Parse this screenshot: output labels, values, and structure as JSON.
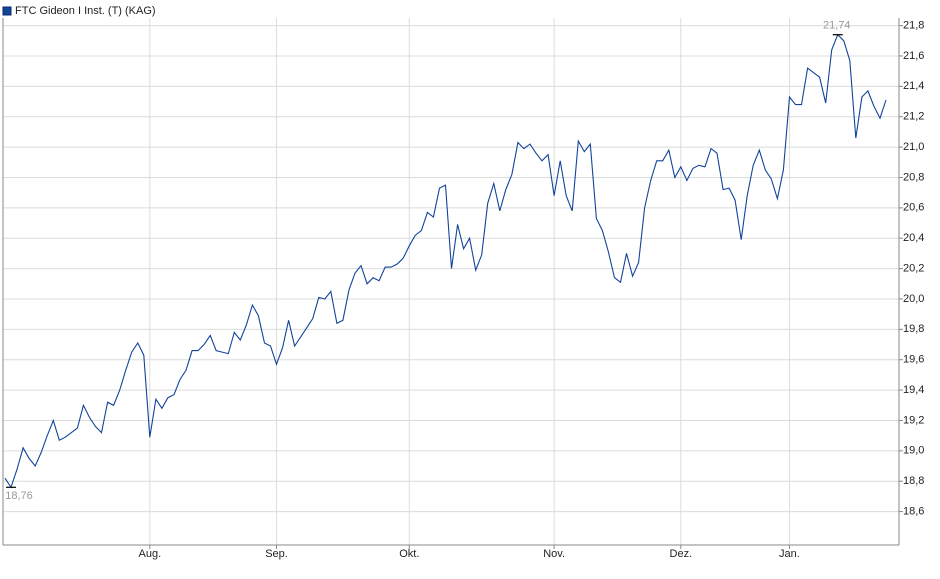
{
  "chart_data": {
    "type": "line",
    "categories": [
      null,
      null,
      null,
      null,
      null,
      null,
      null,
      null,
      null,
      null,
      null,
      null,
      null,
      null,
      null,
      null,
      null,
      null,
      null,
      null,
      null,
      null,
      null,
      null,
      "Aug.",
      null,
      null,
      null,
      null,
      null,
      null,
      null,
      null,
      null,
      null,
      null,
      null,
      null,
      null,
      null,
      null,
      null,
      null,
      null,
      null,
      "Sep.",
      null,
      null,
      null,
      null,
      null,
      null,
      null,
      null,
      null,
      null,
      null,
      null,
      null,
      null,
      null,
      null,
      null,
      null,
      null,
      null,
      null,
      "Okt.",
      null,
      null,
      null,
      null,
      null,
      null,
      null,
      null,
      null,
      null,
      null,
      null,
      null,
      null,
      null,
      null,
      null,
      null,
      null,
      null,
      null,
      null,
      null,
      "Nov.",
      null,
      null,
      null,
      null,
      null,
      null,
      null,
      null,
      null,
      null,
      null,
      null,
      null,
      null,
      null,
      null,
      null,
      null,
      null,
      null,
      "Dez.",
      null,
      null,
      null,
      null,
      null,
      null,
      null,
      null,
      null,
      null,
      null,
      null,
      null,
      null,
      null,
      null,
      null,
      "Jan.",
      null,
      null,
      null,
      null,
      null,
      null,
      null,
      null,
      null,
      null,
      null,
      null,
      null,
      null,
      null,
      null
    ],
    "series": [
      {
        "name": "FTC Gideon I Inst. (T) (KAG)",
        "color": "#12449a",
        "values": [
          18.82,
          18.76,
          18.88,
          19.02,
          18.95,
          18.9,
          18.99,
          19.1,
          19.2,
          19.07,
          19.09,
          19.12,
          19.15,
          19.3,
          19.22,
          19.16,
          19.12,
          19.32,
          19.3,
          19.4,
          19.53,
          19.65,
          19.71,
          19.63,
          19.09,
          19.34,
          19.28,
          19.35,
          19.37,
          19.47,
          19.53,
          19.66,
          19.66,
          19.7,
          19.76,
          19.66,
          19.65,
          19.64,
          19.78,
          19.73,
          19.83,
          19.96,
          19.89,
          19.71,
          19.69,
          19.57,
          19.68,
          19.86,
          19.69,
          19.75,
          19.81,
          19.87,
          20.01,
          20.0,
          20.05,
          19.84,
          19.86,
          20.06,
          20.17,
          20.22,
          20.1,
          20.14,
          20.12,
          20.21,
          20.21,
          20.23,
          20.27,
          20.35,
          20.42,
          20.45,
          20.57,
          20.54,
          20.73,
          20.75,
          20.2,
          20.49,
          20.33,
          20.4,
          20.19,
          20.29,
          20.63,
          20.76,
          20.58,
          20.72,
          20.82,
          21.03,
          20.99,
          21.02,
          20.96,
          20.91,
          20.95,
          20.68,
          20.91,
          20.68,
          20.58,
          21.04,
          20.97,
          21.02,
          20.53,
          20.45,
          20.31,
          20.14,
          20.11,
          20.3,
          20.15,
          20.24,
          20.6,
          20.78,
          20.91,
          20.91,
          20.98,
          20.8,
          20.87,
          20.78,
          20.86,
          20.88,
          20.87,
          20.99,
          20.96,
          20.72,
          20.73,
          20.65,
          20.39,
          20.68,
          20.88,
          20.98,
          20.85,
          20.79,
          20.66,
          20.85,
          21.33,
          21.28,
          21.28,
          21.52,
          21.49,
          21.46,
          21.29,
          21.64,
          21.74,
          21.7,
          21.57,
          21.06,
          21.33,
          21.37,
          21.27,
          21.19,
          21.31
        ]
      }
    ],
    "ylim": [
      18.38,
      21.85
    ],
    "yticks": [
      {
        "value": 18.6,
        "label": "18,6"
      },
      {
        "value": 18.8,
        "label": "18,8"
      },
      {
        "value": 19.0,
        "label": "19,0"
      },
      {
        "value": 19.2,
        "label": "19,2"
      },
      {
        "value": 19.4,
        "label": "19,4"
      },
      {
        "value": 19.6,
        "label": "19,6"
      },
      {
        "value": 19.8,
        "label": "19,8"
      },
      {
        "value": 20.0,
        "label": "20,0"
      },
      {
        "value": 20.2,
        "label": "20,2"
      },
      {
        "value": 20.4,
        "label": "20,4"
      },
      {
        "value": 20.6,
        "label": "20,6"
      },
      {
        "value": 20.8,
        "label": "20,8"
      },
      {
        "value": 21.0,
        "label": "21,0"
      },
      {
        "value": 21.2,
        "label": "21,2"
      },
      {
        "value": 21.4,
        "label": "21,4"
      },
      {
        "value": 21.6,
        "label": "21,6"
      },
      {
        "value": 21.8,
        "label": "21,8"
      }
    ],
    "annotations": [
      {
        "label": "18,76",
        "value": 18.76
      },
      {
        "label": "21,74",
        "value": 21.74
      }
    ],
    "grid": true
  }
}
